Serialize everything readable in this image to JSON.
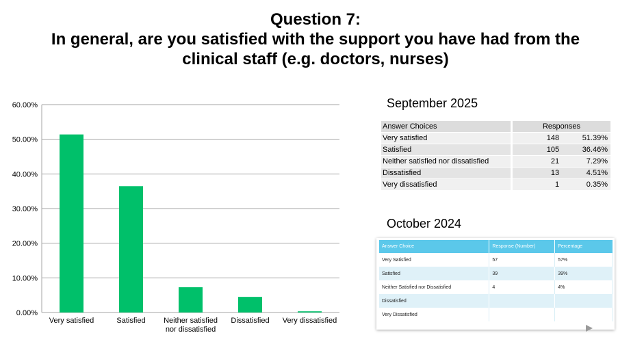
{
  "header": {
    "line1": "Question 7:",
    "line2": "In general, are you satisfied with the support you have had from the",
    "line3": "clinical staff (e.g. doctors, nurses)"
  },
  "chart_data": {
    "type": "bar",
    "title": "",
    "xlabel": "",
    "ylabel": "",
    "categories": [
      [
        "Very satisfied"
      ],
      [
        "Satisfied"
      ],
      [
        "Neither satisfied",
        "nor dissatisfied"
      ],
      [
        "Dissatisfied"
      ],
      [
        "Very dissatisfied"
      ]
    ],
    "values": [
      51.39,
      36.46,
      7.29,
      4.51,
      0.35
    ],
    "ylim": [
      0,
      60
    ],
    "yticks": [
      "0.00%",
      "10.00%",
      "20.00%",
      "30.00%",
      "40.00%",
      "50.00%",
      "60.00%"
    ],
    "grid": true,
    "legend": "none",
    "bar_color": "#00c06a",
    "grid_color": "#a6a6a6"
  },
  "september": {
    "title": "September 2025",
    "headers": [
      "Answer Choices",
      "Responses"
    ],
    "rows": [
      [
        "Very satisfied",
        "148",
        "51.39%"
      ],
      [
        "Satisfied",
        "105",
        "36.46%"
      ],
      [
        "Neither satisfied nor dissatisfied",
        "21",
        "7.29%"
      ],
      [
        "Dissatisfied",
        "13",
        "4.51%"
      ],
      [
        "Very dissatisfied",
        "1",
        "0.35%"
      ]
    ]
  },
  "october": {
    "title": "October 2024",
    "headers": [
      "Answer Choice",
      "Response (Number)",
      "Percentage"
    ],
    "rows": [
      [
        "Very Satisfied",
        "57",
        "57%"
      ],
      [
        "Satisfied",
        "39",
        "39%"
      ],
      [
        "Neither Satisfied nor Dissatisfied",
        "4",
        "4%"
      ],
      [
        "Dissatisfied",
        "",
        ""
      ],
      [
        "Very Dissatisfied",
        "",
        ""
      ]
    ],
    "header_color": "#5bc8ea"
  }
}
